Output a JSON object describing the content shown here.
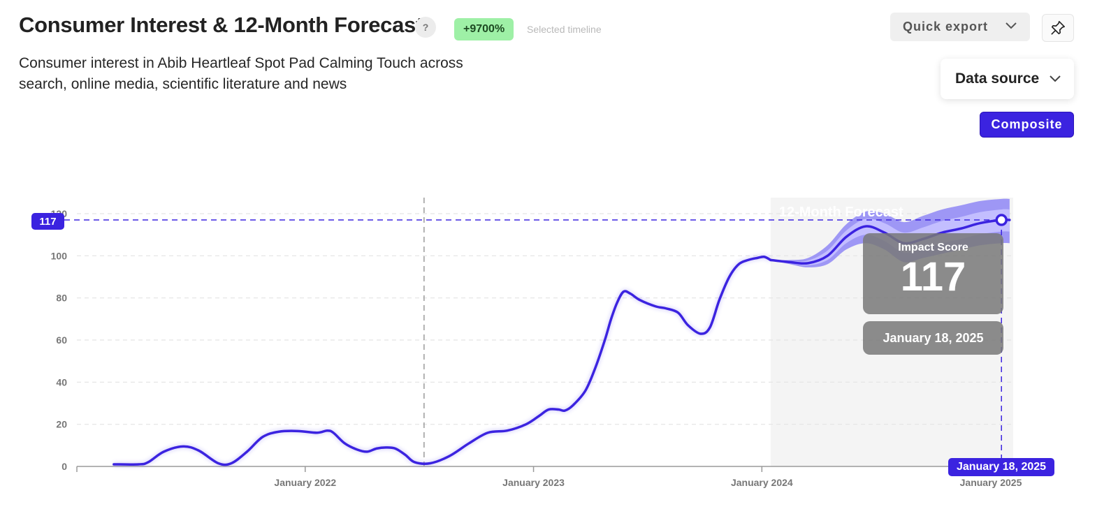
{
  "header": {
    "title": "Consumer Interest & 12-Month Forecast",
    "help_label": "?",
    "growth_badge": "+9700%",
    "growth_caption": "Selected timeline",
    "subtitle": "Consumer interest in Abib Heartleaf Spot Pad Calming Touch across search, online media, scientific literature and news"
  },
  "toolbar": {
    "export_label": "Quick export",
    "data_source_label": "Data source",
    "composite_label": "Composite"
  },
  "icons": {
    "export_chevron": "chevron-down-icon",
    "data_source_chevron": "chevron-down-icon",
    "pin": "pin-icon",
    "help": "question-icon"
  },
  "colors": {
    "accent": "#3b23e0",
    "forecast_band_outer": "#9e97f5",
    "forecast_band_inner": "#c3beff",
    "growth_badge_bg": "#9ef0a6",
    "forecast_region_bg": "#f4f4f4"
  },
  "tooltip": {
    "label": "Impact Score",
    "value": "117",
    "date": "January 18, 2025"
  },
  "crosshair": {
    "y_label": "117",
    "x_label": "January 18, 2025"
  },
  "chart_data": {
    "type": "line",
    "forecast_label": "12-Month Forecast",
    "ylim": [
      0,
      120
    ],
    "yticks": [
      0,
      20,
      40,
      60,
      80,
      100,
      120
    ],
    "ytick_labels": [
      "0",
      "20",
      "40",
      "60",
      "80",
      "100",
      "120"
    ],
    "xlim": [
      "2021-01-01",
      "2025-01-31"
    ],
    "xticks": [
      "2021-01-01",
      "2022-01-01",
      "2023-01-01",
      "2024-01-01",
      "2025-01-01"
    ],
    "xtick_labels": [
      "",
      "January 2022",
      "January 2023",
      "January 2024",
      "January 2025"
    ],
    "grid": true,
    "reference_line_date": "2022-07-10",
    "forecast_start": "2024-01-15",
    "historical": {
      "x": [
        "2021-03-01",
        "2021-04-10",
        "2021-04-25",
        "2021-05-20",
        "2021-06-20",
        "2021-07-15",
        "2021-08-15",
        "2021-09-05",
        "2021-09-30",
        "2021-10-25",
        "2021-11-20",
        "2021-12-20",
        "2022-01-20",
        "2022-02-05",
        "2022-02-15",
        "2022-03-05",
        "2022-03-25",
        "2022-04-10",
        "2022-04-25",
        "2022-05-10",
        "2022-05-25",
        "2022-06-10",
        "2022-06-25",
        "2022-07-20",
        "2022-08-20",
        "2022-09-20",
        "2022-10-20",
        "2022-11-20",
        "2022-12-20",
        "2023-01-10",
        "2023-01-25",
        "2023-02-10",
        "2023-02-20",
        "2023-03-05",
        "2023-03-25",
        "2023-04-10",
        "2023-04-25",
        "2023-05-05",
        "2023-05-15",
        "2023-05-25",
        "2023-06-05",
        "2023-06-20",
        "2023-07-15",
        "2023-08-01",
        "2023-08-20",
        "2023-09-05",
        "2023-09-25",
        "2023-10-10",
        "2023-10-25",
        "2023-11-10",
        "2023-11-25",
        "2023-12-10",
        "2023-12-25",
        "2024-01-05",
        "2024-01-15"
      ],
      "y": [
        1,
        1,
        2,
        7,
        9.5,
        7.5,
        1.5,
        1.5,
        7,
        14,
        16.5,
        16.8,
        16,
        17,
        16,
        11,
        8,
        7,
        8.5,
        9,
        8.5,
        5.5,
        2,
        1.5,
        5,
        11,
        16,
        17,
        20,
        24,
        27,
        27,
        26.5,
        29,
        36,
        47,
        60,
        70,
        78,
        83,
        82,
        79,
        76,
        75,
        73,
        67,
        63,
        66,
        79,
        90,
        96,
        98,
        99,
        99.5,
        98
      ]
    },
    "forecast": {
      "x": [
        "2024-01-15",
        "2024-02-15",
        "2024-03-15",
        "2024-04-15",
        "2024-05-15",
        "2024-06-15",
        "2024-07-15",
        "2024-08-15",
        "2024-09-15",
        "2024-10-15",
        "2024-11-15",
        "2024-12-15",
        "2025-01-18",
        "2025-01-31"
      ],
      "y": [
        98,
        97,
        96.5,
        100,
        109,
        114,
        111,
        106,
        108,
        111,
        113,
        115.5,
        117,
        117
      ],
      "lower": [
        98,
        96,
        94.5,
        96,
        103,
        106,
        103,
        97,
        99,
        101,
        103,
        105,
        106,
        106
      ],
      "upper": [
        98,
        98,
        99,
        105,
        115,
        121,
        120,
        116,
        119,
        122,
        124,
        126,
        127,
        127
      ]
    },
    "highlight": {
      "x": "2025-01-18",
      "y": 117
    }
  }
}
